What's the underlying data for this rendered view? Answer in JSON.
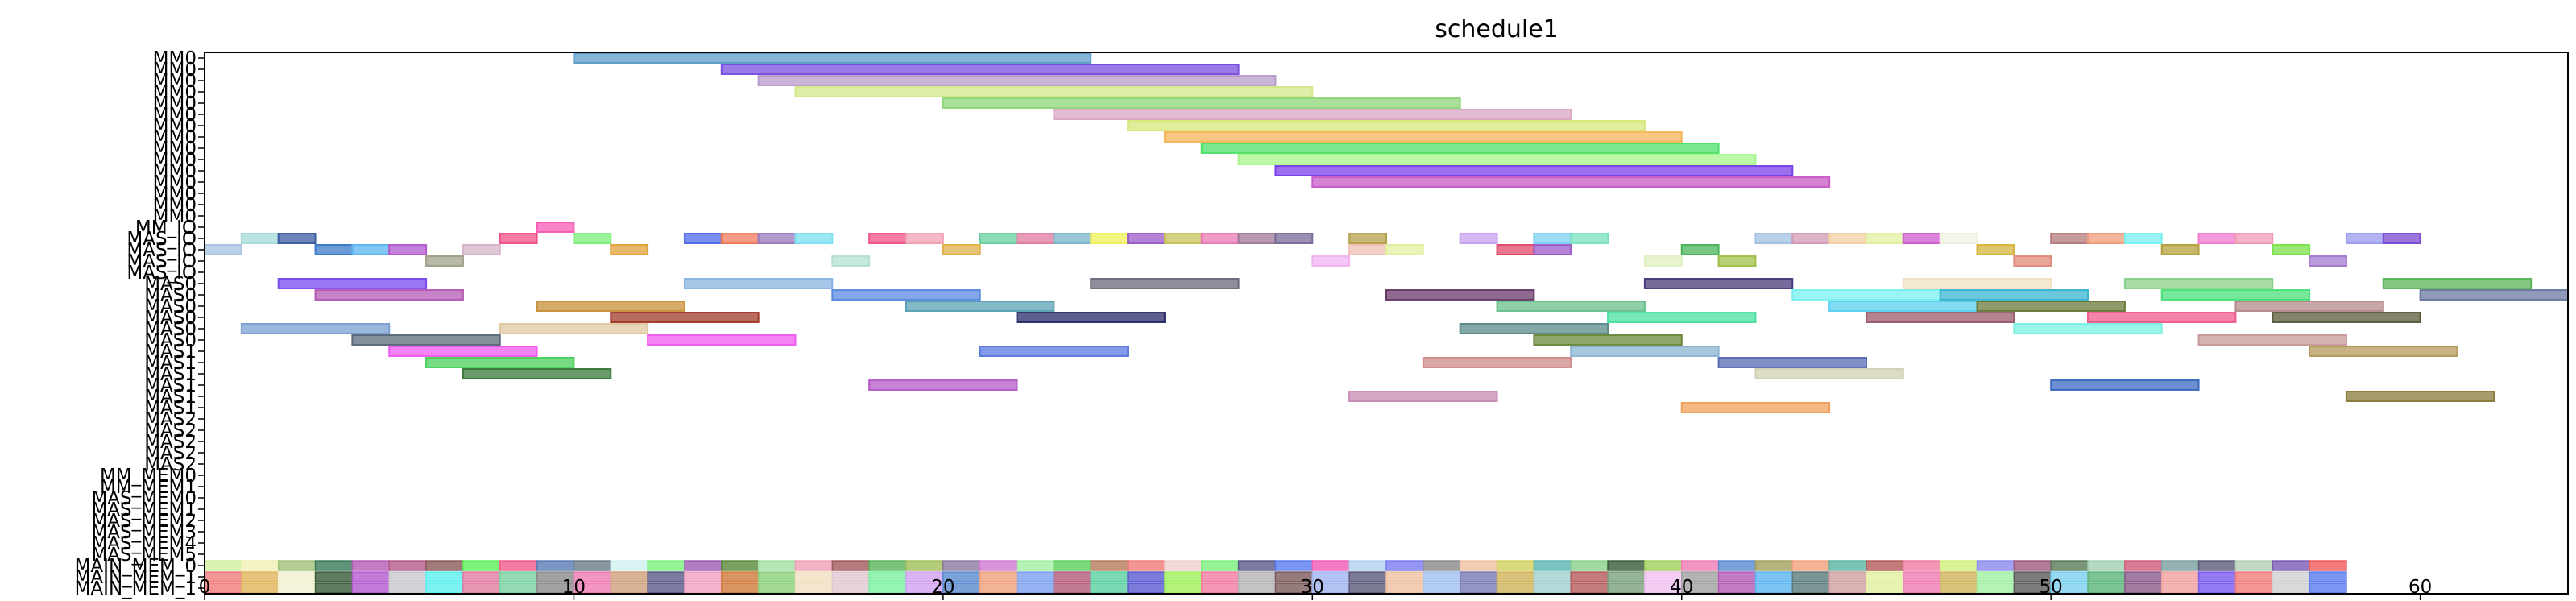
{
  "chart_data": {
    "type": "gantt",
    "title": "schedule1",
    "xlabel": "",
    "ylabel": "",
    "xlim": [
      0,
      64
    ],
    "x_ticks": [
      0,
      10,
      20,
      30,
      40,
      50,
      60
    ],
    "y_labels": [
      "MM0",
      "MM0",
      "MM0",
      "MM0",
      "MM0",
      "MM0",
      "MM0",
      "MM0",
      "MM0",
      "MM0",
      "MM0",
      "MM0",
      "MM0",
      "MM0",
      "MM0",
      "MM_IO",
      "MAS_IO",
      "MAS_IO",
      "MAS_IO",
      "MAS_IO",
      "MAS0",
      "MAS0",
      "MAS0",
      "MAS0",
      "MAS0",
      "MAS0",
      "MAS1",
      "MAS1",
      "MAS1",
      "MAS1",
      "MAS1",
      "MAS1",
      "MAS2",
      "MAS2",
      "MAS2",
      "MAS2",
      "MAS2",
      "MM_MEM0",
      "MM_MEM1",
      "MAS_MEM0",
      "MAS_MEM1",
      "MAS_MEM2",
      "MAS_MEM3",
      "MAS_MEM4",
      "MAS_MEM5",
      "MAIN_MEM_0",
      "MAIN_MEM_1",
      "MAIN_MEM_1"
    ],
    "segments": [
      {
        "row": 0,
        "start": 10,
        "end": 24,
        "color": "#5b9bc8"
      },
      {
        "row": 1,
        "start": 14,
        "end": 28,
        "color": "#7a4fe0"
      },
      {
        "row": 2,
        "start": 15,
        "end": 29,
        "color": "#b89bc9"
      },
      {
        "row": 3,
        "start": 16,
        "end": 30,
        "color": "#d4e88a"
      },
      {
        "row": 4,
        "start": 20,
        "end": 34,
        "color": "#8fd67a"
      },
      {
        "row": 5,
        "start": 23,
        "end": 37,
        "color": "#d9a6c4"
      },
      {
        "row": 6,
        "start": 25,
        "end": 39,
        "color": "#d6e87a"
      },
      {
        "row": 7,
        "start": 26,
        "end": 40,
        "color": "#f5b55a"
      },
      {
        "row": 8,
        "start": 27,
        "end": 41,
        "color": "#4fe06a"
      },
      {
        "row": 9,
        "start": 28,
        "end": 42,
        "color": "#a6f58a"
      },
      {
        "row": 10,
        "start": 29,
        "end": 43,
        "color": "#7a3fe8"
      },
      {
        "row": 11,
        "start": 30,
        "end": 44,
        "color": "#c85ac8"
      },
      {
        "row": 15,
        "start": 9,
        "end": 10,
        "color": "#f55ab4"
      },
      {
        "row": 16,
        "start": 1,
        "end": 2,
        "color": "#a6d9d9"
      },
      {
        "row": 16,
        "start": 2,
        "end": 3,
        "color": "#3b5ba0"
      },
      {
        "row": 16,
        "start": 8,
        "end": 9,
        "color": "#f0508a"
      },
      {
        "row": 16,
        "start": 10,
        "end": 11,
        "color": "#7af07a"
      },
      {
        "row": 16,
        "start": 13,
        "end": 14,
        "color": "#4f6ae8"
      },
      {
        "row": 16,
        "start": 14,
        "end": 15,
        "color": "#f07a5a"
      },
      {
        "row": 16,
        "start": 15,
        "end": 16,
        "color": "#9a7ac0"
      },
      {
        "row": 16,
        "start": 16,
        "end": 17,
        "color": "#7ae0f0"
      },
      {
        "row": 16,
        "start": 18,
        "end": 19,
        "color": "#f0508a"
      },
      {
        "row": 16,
        "start": 19,
        "end": 20,
        "color": "#f0a0b4"
      },
      {
        "row": 16,
        "start": 21,
        "end": 22,
        "color": "#6ad0a0"
      },
      {
        "row": 16,
        "start": 22,
        "end": 23,
        "color": "#e07aa0"
      },
      {
        "row": 16,
        "start": 23,
        "end": 24,
        "color": "#7ab4c8"
      },
      {
        "row": 16,
        "start": 24,
        "end": 25,
        "color": "#f0f05a"
      },
      {
        "row": 16,
        "start": 25,
        "end": 26,
        "color": "#9a5ac8"
      },
      {
        "row": 16,
        "start": 26,
        "end": 27,
        "color": "#c8c05a"
      },
      {
        "row": 16,
        "start": 27,
        "end": 28,
        "color": "#e87ab4"
      },
      {
        "row": 16,
        "start": 28,
        "end": 29,
        "color": "#a07a9a"
      },
      {
        "row": 16,
        "start": 29,
        "end": 30,
        "color": "#7a6a9a"
      },
      {
        "row": 16,
        "start": 31,
        "end": 32,
        "color": "#b4a04a"
      },
      {
        "row": 16,
        "start": 34,
        "end": 35,
        "color": "#c8a0f0"
      },
      {
        "row": 16,
        "start": 36,
        "end": 37,
        "color": "#7ad0f0"
      },
      {
        "row": 16,
        "start": 37,
        "end": 38,
        "color": "#7ae0c0"
      },
      {
        "row": 16,
        "start": 42,
        "end": 43,
        "color": "#a0c0e0"
      },
      {
        "row": 16,
        "start": 43,
        "end": 44,
        "color": "#d09ab4"
      },
      {
        "row": 16,
        "start": 44,
        "end": 45,
        "color": "#f0d0a0"
      },
      {
        "row": 16,
        "start": 45,
        "end": 46,
        "color": "#e0f0a0"
      },
      {
        "row": 16,
        "start": 46,
        "end": 47,
        "color": "#d05ad0"
      },
      {
        "row": 16,
        "start": 47,
        "end": 48,
        "color": "#f0f0e0"
      },
      {
        "row": 16,
        "start": 50,
        "end": 51,
        "color": "#b47a7a"
      },
      {
        "row": 16,
        "start": 51,
        "end": 52,
        "color": "#f09a7a"
      },
      {
        "row": 16,
        "start": 52,
        "end": 53,
        "color": "#7af0f0"
      },
      {
        "row": 16,
        "start": 54,
        "end": 55,
        "color": "#f07ad0"
      },
      {
        "row": 16,
        "start": 55,
        "end": 56,
        "color": "#f09ab4"
      },
      {
        "row": 16,
        "start": 58,
        "end": 59,
        "color": "#9a9af0"
      },
      {
        "row": 16,
        "start": 59,
        "end": 60,
        "color": "#7a4ad0"
      },
      {
        "row": 17,
        "start": 0,
        "end": 1,
        "color": "#a6c0e0"
      },
      {
        "row": 17,
        "start": 3,
        "end": 4,
        "color": "#3b7ac8"
      },
      {
        "row": 17,
        "start": 4,
        "end": 5,
        "color": "#5ab4f0"
      },
      {
        "row": 17,
        "start": 5,
        "end": 6,
        "color": "#b45ad0"
      },
      {
        "row": 17,
        "start": 7,
        "end": 8,
        "color": "#d4b4c8"
      },
      {
        "row": 17,
        "start": 11,
        "end": 12,
        "color": "#e0a03a"
      },
      {
        "row": 17,
        "start": 20,
        "end": 21,
        "color": "#e0b04a"
      },
      {
        "row": 17,
        "start": 31,
        "end": 32,
        "color": "#f0c0b4"
      },
      {
        "row": 17,
        "start": 32,
        "end": 33,
        "color": "#e0f0a0"
      },
      {
        "row": 17,
        "start": 35,
        "end": 36,
        "color": "#e04a6a"
      },
      {
        "row": 17,
        "start": 36,
        "end": 37,
        "color": "#9a5ac8"
      },
      {
        "row": 17,
        "start": 40,
        "end": 41,
        "color": "#4ab45a"
      },
      {
        "row": 17,
        "start": 48,
        "end": 49,
        "color": "#d4b43a"
      },
      {
        "row": 17,
        "start": 53,
        "end": 54,
        "color": "#b4a03a"
      },
      {
        "row": 17,
        "start": 56,
        "end": 57,
        "color": "#7ae04a"
      },
      {
        "row": 18,
        "start": 6,
        "end": 7,
        "color": "#a0a08a"
      },
      {
        "row": 18,
        "start": 17,
        "end": 18,
        "color": "#b4e0d0"
      },
      {
        "row": 18,
        "start": 30,
        "end": 31,
        "color": "#f0b4f0"
      },
      {
        "row": 18,
        "start": 39,
        "end": 40,
        "color": "#e0f0c0"
      },
      {
        "row": 18,
        "start": 41,
        "end": 42,
        "color": "#a0c04a"
      },
      {
        "row": 18,
        "start": 49,
        "end": 50,
        "color": "#e08a7a"
      },
      {
        "row": 18,
        "start": 57,
        "end": 58,
        "color": "#a07ad0"
      },
      {
        "row": 20,
        "start": 2,
        "end": 6,
        "color": "#7a4af0"
      },
      {
        "row": 20,
        "start": 13,
        "end": 17,
        "color": "#8ab4e0"
      },
      {
        "row": 20,
        "start": 24,
        "end": 28,
        "color": "#6a6a7a"
      },
      {
        "row": 20,
        "start": 39,
        "end": 43,
        "color": "#4a3a7a"
      },
      {
        "row": 20,
        "start": 46,
        "end": 50,
        "color": "#f0e0c0"
      },
      {
        "row": 20,
        "start": 52,
        "end": 56,
        "color": "#8ad08a"
      },
      {
        "row": 20,
        "start": 59,
        "end": 63,
        "color": "#5ab45a"
      },
      {
        "row": 21,
        "start": 3,
        "end": 7,
        "color": "#b45ab4"
      },
      {
        "row": 21,
        "start": 17,
        "end": 21,
        "color": "#5a8ae0"
      },
      {
        "row": 21,
        "start": 32,
        "end": 36,
        "color": "#6a3a6a"
      },
      {
        "row": 21,
        "start": 43,
        "end": 47,
        "color": "#7af0f0"
      },
      {
        "row": 21,
        "start": 47,
        "end": 51,
        "color": "#3ab4d0"
      },
      {
        "row": 21,
        "start": 53,
        "end": 57,
        "color": "#4ae07a"
      },
      {
        "row": 21,
        "start": 60,
        "end": 64,
        "color": "#6a7aa0"
      },
      {
        "row": 22,
        "start": 9,
        "end": 13,
        "color": "#c8903a"
      },
      {
        "row": 22,
        "start": 19,
        "end": 23,
        "color": "#5aa0b4"
      },
      {
        "row": 22,
        "start": 35,
        "end": 39,
        "color": "#6ac08a"
      },
      {
        "row": 22,
        "start": 44,
        "end": 48,
        "color": "#5ad0f0"
      },
      {
        "row": 22,
        "start": 48,
        "end": 52,
        "color": "#6a7a3a"
      },
      {
        "row": 22,
        "start": 55,
        "end": 59,
        "color": "#b48a8a"
      },
      {
        "row": 23,
        "start": 11,
        "end": 15,
        "color": "#a03a2a"
      },
      {
        "row": 23,
        "start": 22,
        "end": 26,
        "color": "#2a2a6a"
      },
      {
        "row": 23,
        "start": 38,
        "end": 42,
        "color": "#4ae0a0"
      },
      {
        "row": 23,
        "start": 45,
        "end": 49,
        "color": "#9a5a6a"
      },
      {
        "row": 23,
        "start": 51,
        "end": 55,
        "color": "#f05a8a"
      },
      {
        "row": 23,
        "start": 56,
        "end": 60,
        "color": "#5a5a3a"
      },
      {
        "row": 24,
        "start": 1,
        "end": 5,
        "color": "#7aa0d0"
      },
      {
        "row": 24,
        "start": 8,
        "end": 12,
        "color": "#e0c8a0"
      },
      {
        "row": 24,
        "start": 34,
        "end": 38,
        "color": "#5a8a8a"
      },
      {
        "row": 24,
        "start": 49,
        "end": 53,
        "color": "#7af0e0"
      },
      {
        "row": 25,
        "start": 4,
        "end": 8,
        "color": "#5a6a7a"
      },
      {
        "row": 25,
        "start": 12,
        "end": 16,
        "color": "#f05af0"
      },
      {
        "row": 25,
        "start": 36,
        "end": 40,
        "color": "#6a8a3a"
      },
      {
        "row": 25,
        "start": 54,
        "end": 58,
        "color": "#c89a9a"
      },
      {
        "row": 26,
        "start": 5,
        "end": 9,
        "color": "#f05af0"
      },
      {
        "row": 26,
        "start": 21,
        "end": 25,
        "color": "#5a7ae0"
      },
      {
        "row": 26,
        "start": 37,
        "end": 41,
        "color": "#8ab4d0"
      },
      {
        "row": 26,
        "start": 57,
        "end": 61,
        "color": "#b49a5a"
      },
      {
        "row": 27,
        "start": 6,
        "end": 10,
        "color": "#4ad05a"
      },
      {
        "row": 27,
        "start": 33,
        "end": 37,
        "color": "#d08a8a"
      },
      {
        "row": 27,
        "start": 41,
        "end": 45,
        "color": "#5a6ab4"
      },
      {
        "row": 28,
        "start": 7,
        "end": 11,
        "color": "#3a7a3a"
      },
      {
        "row": 28,
        "start": 42,
        "end": 46,
        "color": "#d0d0b4"
      },
      {
        "row": 29,
        "start": 18,
        "end": 22,
        "color": "#b45ac8"
      },
      {
        "row": 29,
        "start": 50,
        "end": 54,
        "color": "#3a6ac0"
      },
      {
        "row": 30,
        "start": 31,
        "end": 35,
        "color": "#c88ab4"
      },
      {
        "row": 30,
        "start": 58,
        "end": 62,
        "color": "#8a7a3a"
      },
      {
        "row": 31,
        "start": 40,
        "end": 44,
        "color": "#f0a05a"
      }
    ],
    "mem_rows": [
      {
        "row": 45,
        "colors": [
          "#d0f0a0",
          "#f0f0b4",
          "#a0c07a",
          "#3a7a5a",
          "#b45ab4",
          "#b45a8a",
          "#8a5a5a",
          "#5af05a",
          "#f05a8a",
          "#5a7ab4",
          "#6a7a8a",
          "#d0f0f0",
          "#7af07a",
          "#a05ab4",
          "#5a8a3a",
          "#a0e0a0",
          "#f0a0b4",
          "#a05a5a",
          "#5ab45a",
          "#a0c05a",
          "#8a7aa0",
          "#d07ad0",
          "#a0f0a0",
          "#5ad05a",
          "#b47a5a",
          "#f07a7a",
          "#f0d0d0",
          "#7af07a",
          "#5a5a8a",
          "#5a7af0",
          "#f05ab4",
          "#b4d0f0",
          "#7a7af0",
          "#8a8a8a",
          "#f0c0a0",
          "#d0d05a",
          "#5ab4b4",
          "#8ad08a",
          "#3a5a3a",
          "#a0d05a",
          "#f07ab4",
          "#5a8ad0",
          "#a0a05a",
          "#f0a07a",
          "#5ab4a0",
          "#b45a5a",
          "#f07aa0",
          "#d0f07a",
          "#8a8af0",
          "#a05a7a",
          "#5a7a5a",
          "#a0d0b4",
          "#d05a7a",
          "#7aa0a0",
          "#5a5a7a",
          "#b4d0b4",
          "#7a5ab4",
          "#f05a5a"
        ]
      },
      {
        "row": 46,
        "colors": [
          "#f07a7a",
          "#e0b45a",
          "#f0f0d0",
          "#3a5a3a",
          "#b45ad0",
          "#c8c8d0",
          "#5af0f0",
          "#e07aa0",
          "#7ad0a0",
          "#8a8a8a",
          "#f07ab4",
          "#d0a07a",
          "#5a5a8a",
          "#f0a0c0",
          "#d07a3a",
          "#8ad07a",
          "#f0e0c0",
          "#e0c8d0",
          "#7af0a0",
          "#d0a0f0",
          "#5a8ad0",
          "#f0a07a",
          "#7aa0f0",
          "#b45a7a",
          "#5ad0a0",
          "#5a5ad0",
          "#a0f05a",
          "#f07aa0",
          "#b4b4b4",
          "#7a5a5a",
          "#a0b4f0",
          "#5a5a7a",
          "#f0c0a0",
          "#a0c0f0",
          "#7a7ab4",
          "#d0b45a",
          "#a0d0d0",
          "#b45a5a",
          "#7aa07a",
          "#f0c0f0",
          "#a0a0a0",
          "#b45ab4",
          "#5ab4f0",
          "#5a7a7a",
          "#d0a0a0",
          "#e0f0a0",
          "#f07ab4",
          "#d0b45a",
          "#a0f0a0",
          "#5a5a5a",
          "#7ad0f0",
          "#5ab47a",
          "#8a5a8a",
          "#f0a0a0",
          "#7a5af0",
          "#f07a7a",
          "#d0d0d0",
          "#5a7af0"
        ]
      },
      {
        "row": 47,
        "colors": [
          "#f07a7a",
          "#e0b45a",
          "#f0f0d0",
          "#3a5a3a",
          "#b45ad0",
          "#c8c8d0",
          "#5af0f0",
          "#e07aa0",
          "#7ad0a0",
          "#8a8a8a",
          "#f07ab4",
          "#d0a07a",
          "#5a5a8a",
          "#f0a0c0",
          "#d07a3a",
          "#8ad07a",
          "#f0e0c0",
          "#e0c8d0",
          "#7af0a0",
          "#d0a0f0",
          "#5a8ad0",
          "#f0a07a",
          "#7aa0f0",
          "#b45a7a",
          "#5ad0a0",
          "#5a5ad0",
          "#a0f05a",
          "#f07aa0",
          "#b4b4b4",
          "#7a5a5a",
          "#a0b4f0",
          "#5a5a7a",
          "#f0c0a0",
          "#a0c0f0",
          "#7a7ab4",
          "#d0b45a",
          "#a0d0d0",
          "#b45a5a",
          "#7aa07a",
          "#f0c0f0",
          "#a0a0a0",
          "#b45ab4",
          "#5ab4f0",
          "#5a7a7a",
          "#d0a0a0",
          "#e0f0a0",
          "#f07ab4",
          "#d0b45a",
          "#a0f0a0",
          "#5a5a5a",
          "#7ad0f0",
          "#5ab47a",
          "#8a5a8a",
          "#f0a0a0",
          "#7a5af0",
          "#f07a7a",
          "#d0d0d0",
          "#5a7af0"
        ]
      }
    ]
  }
}
